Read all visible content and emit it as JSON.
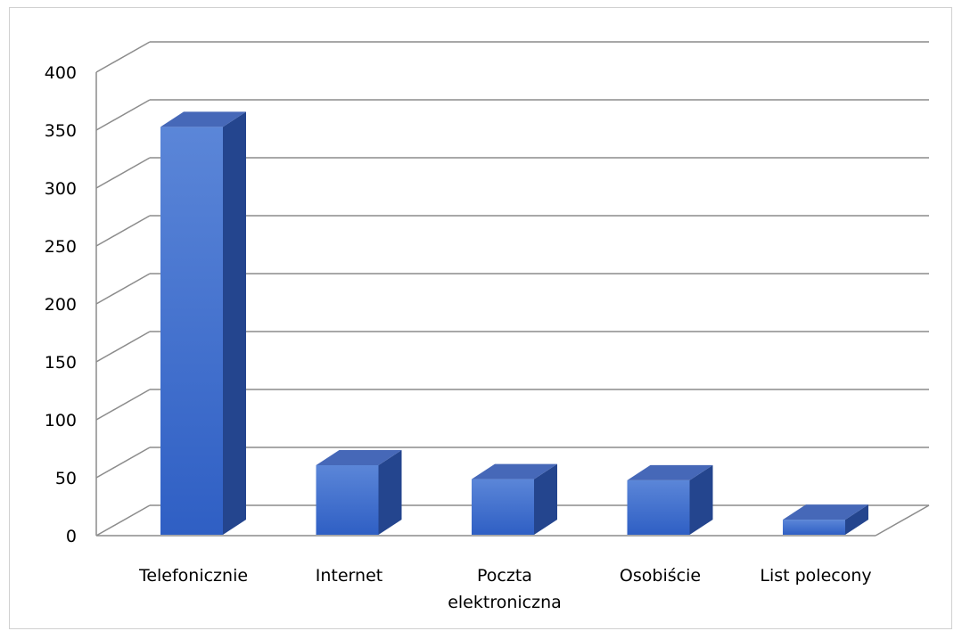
{
  "chart_data": {
    "type": "bar",
    "style": "3d-column",
    "categories": [
      [
        "Telefonicznie"
      ],
      [
        "Internet"
      ],
      [
        "Poczta",
        "elektroniczna"
      ],
      [
        "Osobiście"
      ],
      [
        "List polecony"
      ]
    ],
    "values": [
      352,
      60,
      48,
      47,
      13
    ],
    "ylim": [
      0,
      400
    ],
    "yticks": [
      0,
      50,
      100,
      150,
      200,
      250,
      300,
      350,
      400
    ],
    "title": "",
    "xlabel": "",
    "ylabel": "",
    "grid": true,
    "legend": "none",
    "colors": {
      "front_top": "#5b86d8",
      "front_bottom": "#2f5fc4",
      "side": "#24458e",
      "top": "#4668b8",
      "grid": "#8c8c8c"
    }
  }
}
